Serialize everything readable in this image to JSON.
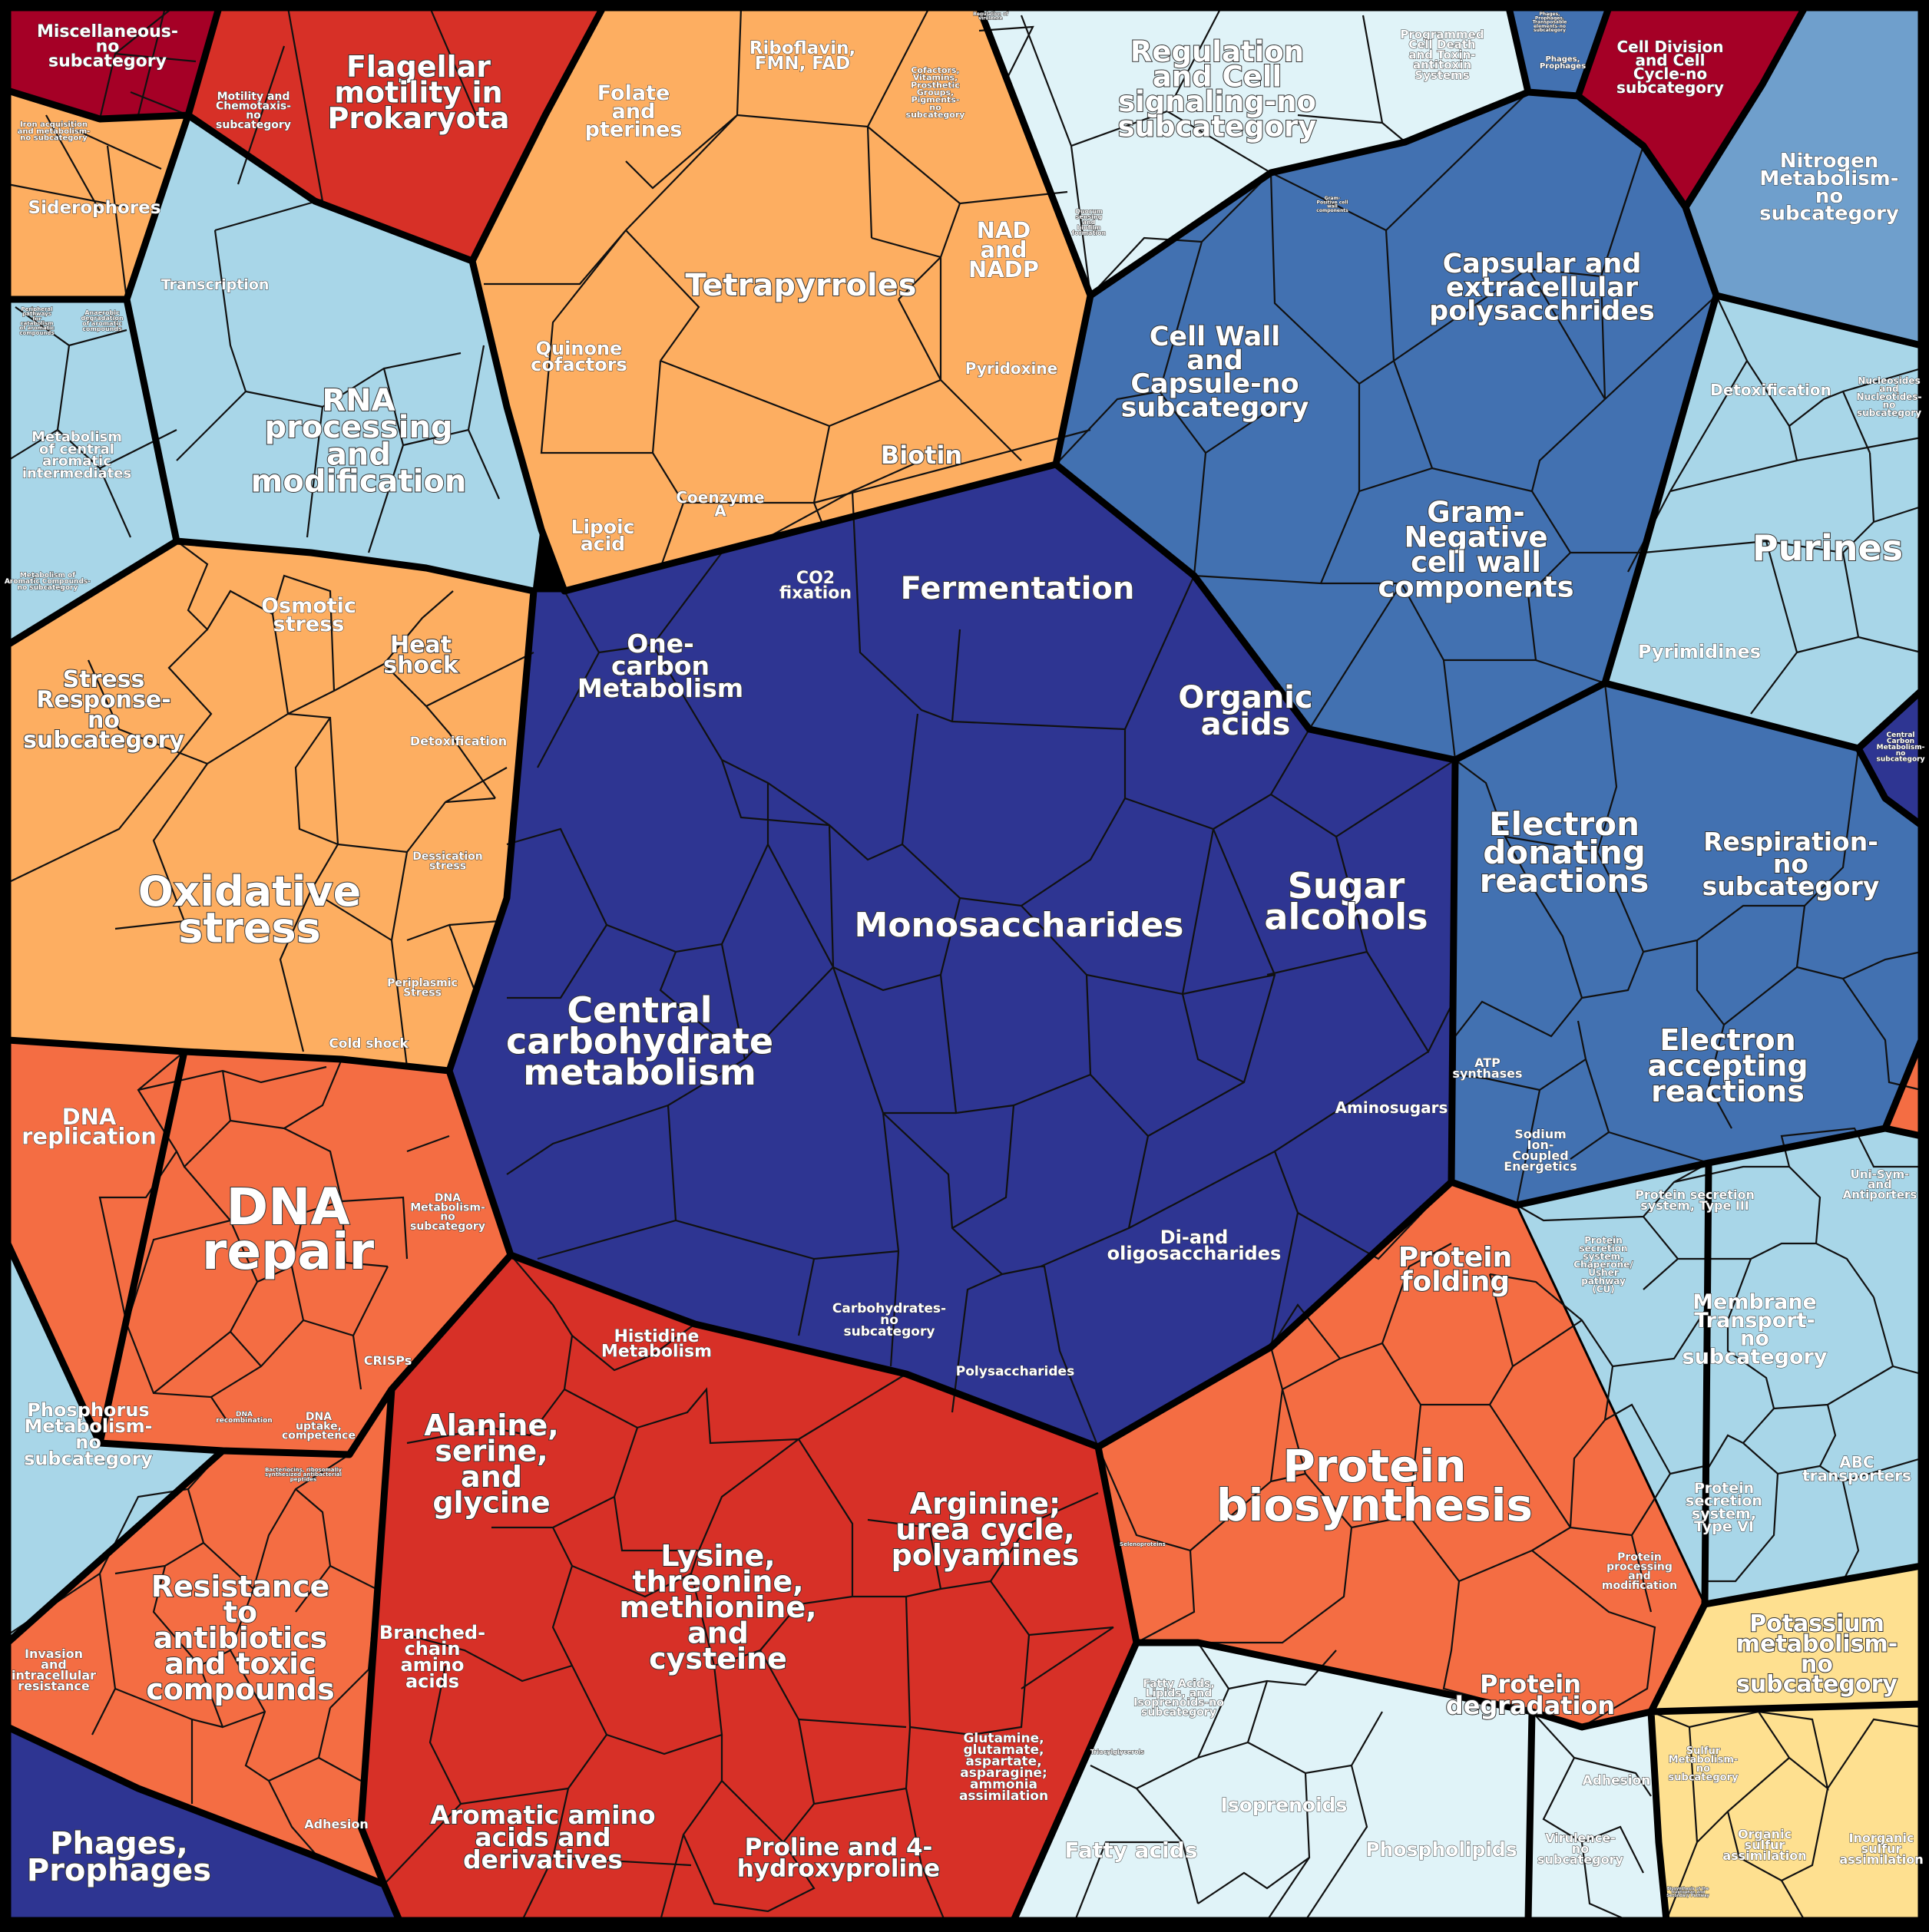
{
  "palette": {
    "navy": "#2e3592",
    "blue": "#4271b1",
    "light_blue": "#a8d6e8",
    "pale_blue": "#e0f3f8",
    "orange": "#fdae61",
    "salmon": "#f46d43",
    "red": "#d73027",
    "crimson": "#a50026",
    "yellow": "#fee090",
    "outline": "#000000"
  },
  "labels": {
    "misc_no_sub": "Miscellaneous-no subcategory",
    "motility_chemotaxis": "Motility and Chemotaxis-no subcategory",
    "flagellar_motility": "Flagellar motility in Prokaryota",
    "folate": "Folate and pterines",
    "riboflavin": "Riboflavin, FMN, FAD",
    "cofactors_vitamins": "Cofactors, Vitamins, Prosthetic Groups, Pigments-no subcategory",
    "tetrapyrroles": "Tetrapyrroles",
    "nad_nadp": "NAD and NADP",
    "pyridoxine": "Pyridoxine",
    "biotin": "Biotin",
    "quinone": "Quinone cofactors",
    "coenzyme_a": "Coenzyme A",
    "lipoic_acid": "Lipoic acid",
    "iron_acq": "Iron acquisition and metabolism-no subcategory",
    "siderophores": "Siderophores",
    "transcription": "Transcription",
    "rna_processing": "RNA processing and modification",
    "peripheral_pathways": "Peripheral pathways for catabolism of aromatic compounds",
    "anaerobic_degradation": "Anaerobic degradation of aromatic compounds",
    "central_aromatic": "Metabolism of central aromatic intermediates",
    "aromatic_no_sub": "Metabolism of Aromatic Compounds-no subcategory",
    "regulation_cell_signaling": "Regulation and Cell signaling-no subcategory",
    "regulation_virulence": "Regulation of virulence",
    "programmed_cell_death": "Programmed Cell Death and Toxin-antitoxin Systems",
    "quorum_sensing": "Quorum sensing and biofilm formation",
    "phages_prophages_transposable": "Phages, Prophages, Transposable elements-no subcategory",
    "phages_prophages_small": "Phages, Prophages",
    "cell_division": "Cell Division and Cell Cycle-no subcategory",
    "gram_positive_cell_wall": "Gram-Positive cell wall components",
    "capsular_polysaccharides": "Capsular and extracellular polysacchrides",
    "cell_wall_capsule": "Cell Wall and Capsule-no subcategory",
    "gram_negative": "Gram-Negative cell wall components",
    "nitrogen_metabolism": "Nitrogen Metabolism-no subcategory",
    "detoxification_top": "Detoxification",
    "nucleosides_no_sub": "Nucleosides and Nucleotides-no subcategory",
    "purines": "Purines",
    "pyrimidines": "Pyrimidines",
    "central_carbon_small": "Central Carbon Metabolism-no subcategory",
    "co2_fixation": "CO2 fixation",
    "fermentation": "Fermentation",
    "one_carbon": "One-carbon Metabolism",
    "organic_acids": "Organic acids",
    "monosaccharides": "Monosaccharides",
    "sugar_alcohols": "Sugar alcohols",
    "central_carbohydrate": "Central carbohydrate metabolism",
    "aminosugars": "Aminosugars",
    "di_oligosaccharides": "Di-and oligosaccharides",
    "carbohydrates_no_sub": "Carbohydrates-no subcategory",
    "polysaccharides": "Polysaccharides",
    "osmotic_stress": "Osmotic stress",
    "heat_shock": "Heat shock",
    "stress_response_no_sub": "Stress Response-no subcategory",
    "detoxification_stress": "Detoxification",
    "dessication_stress": "Dessication stress",
    "oxidative_stress": "Oxidative stress",
    "periplasmic_stress": "Periplasmic Stress",
    "cold_shock": "Cold shock",
    "electron_donating": "Electron donating reactions",
    "respiration_no_sub": "Respiration-no subcategory",
    "electron_accepting": "Electron accepting reactions",
    "atp_synthases": "ATP synthases",
    "sodium_ion": "Sodium Ion-Coupled Energetics",
    "dna_replication": "DNA replication",
    "dna_repair": "DNA repair",
    "dna_metabolism_no_sub": "DNA Metabolism-no subcategory",
    "crisps": "CRISPs",
    "dna_recombination": "DNA recombination",
    "dna_uptake": "DNA uptake, competence",
    "phosphorus_metabolism": "Phosphorus Metabolism-no subcategory",
    "bacteriocins": "Bacteriocins, ribosomally synthesized antibacterial peptides",
    "resistance_antibiotics": "Resistance to antibiotics and toxic compounds",
    "invasion": "Invasion and intracellular resistance",
    "adhesion_left": "Adhesion",
    "phages_prophages_large": "Phages, Prophages",
    "histidine": "Histidine Metabolism",
    "alanine_serine": "Alanine, serine, and glycine",
    "lysine_threonine": "Lysine, threonine, methionine, and cysteine",
    "arginine": "Arginine; urea cycle, polyamines",
    "branched_chain": "Branched-chain amino acids",
    "aromatic_amino": "Aromatic amino acids and derivatives",
    "proline": "Proline and 4-hydroxyproline",
    "glutamine": "Glutamine, glutamate, aspartate, asparagine; ammonia assimilation",
    "protein_folding": "Protein folding",
    "protein_biosynthesis": "Protein biosynthesis",
    "protein_processing": "Protein processing and modification",
    "protein_degradation": "Protein degradation",
    "selenoproteins": "Selenoproteins",
    "protein_secretion_iii": "Protein secretion system, Type III",
    "uni_sym_antiporters": "Uni-Sym- and Antiporters",
    "protein_secretion_chaperone": "Protein secretion system, Chaperone/Usher pathway (CU)",
    "membrane_transport": "Membrane Transport-no subcategory",
    "abc_transporters": "ABC transporters",
    "protein_secretion_vi": "Protein secretion system, Type VI",
    "potassium_metabolism": "Potassium metabolism-no subcategory",
    "sulfur_metabolism": "Sulfur Metabolism-no subcategory",
    "organic_sulfur": "Organic sulfur assimilation",
    "inorganic_sulfur": "Inorganic sulfur assimilation",
    "fatty_acids_lipids": "Fatty Acids, Lipids, and Isoprenoids-no subcategory",
    "triacylglycerols": "Triacylglycerols",
    "isoprenoids": "Isoprenoids",
    "fatty_acids": "Fatty acids",
    "phospholipids": "Phospholipids",
    "adhesion_right": "Adhesion",
    "virulence_no_sub": "Virulence-no subcategory",
    "secondary_small": "Biosynthesis of phenylpropanoids"
  }
}
